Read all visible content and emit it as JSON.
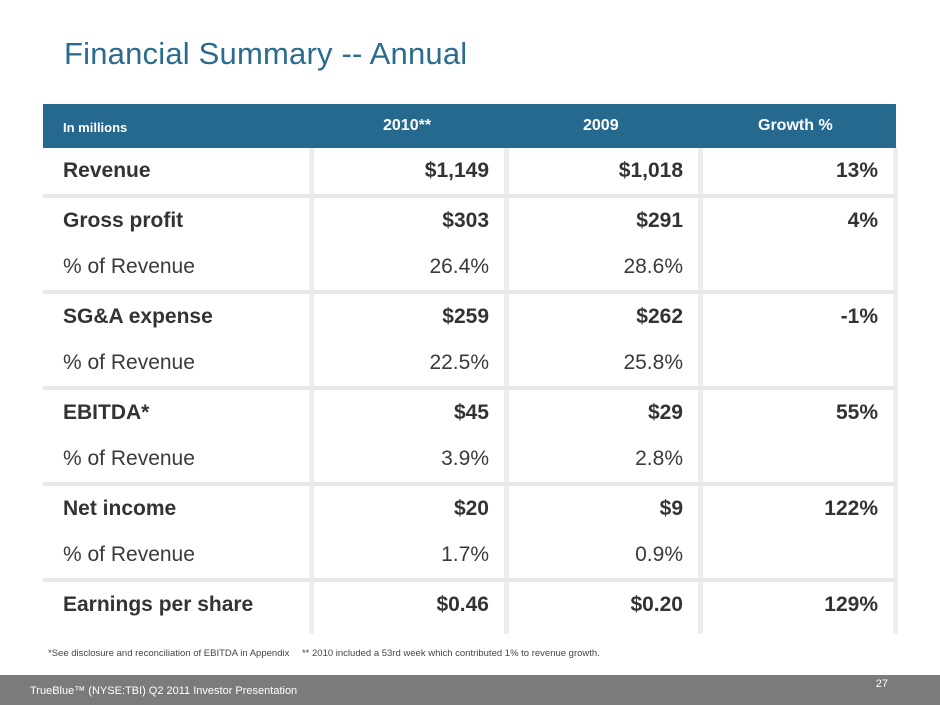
{
  "slide": {
    "title": "Financial Summary -- Annual",
    "page_number": "27",
    "footer": "TrueBlue™ (NYSE:TBI) Q2 2011 Investor Presentation"
  },
  "table": {
    "header": {
      "label": "In millions",
      "col1": "2010**",
      "col2": "2009",
      "col3": "Growth %"
    },
    "groups": [
      {
        "rows": [
          {
            "label": "Revenue",
            "c1": "$1,149",
            "c2": "$1,018",
            "c3": "13%",
            "bold": true
          }
        ]
      },
      {
        "rows": [
          {
            "label": "Gross profit",
            "c1": "$303",
            "c2": "$291",
            "c3": "4%",
            "bold": true
          },
          {
            "label": "% of Revenue",
            "c1": "26.4%",
            "c2": "28.6%",
            "c3": "",
            "bold": false
          }
        ]
      },
      {
        "rows": [
          {
            "label": "SG&A expense",
            "c1": "$259",
            "c2": "$262",
            "c3": "-1%",
            "bold": true
          },
          {
            "label": "% of Revenue",
            "c1": "22.5%",
            "c2": "25.8%",
            "c3": "",
            "bold": false
          }
        ]
      },
      {
        "rows": [
          {
            "label": "EBITDA*",
            "c1": "$45",
            "c2": "$29",
            "c3": "55%",
            "bold": true
          },
          {
            "label": "% of Revenue",
            "c1": "3.9%",
            "c2": "2.8%",
            "c3": "",
            "bold": false
          }
        ]
      },
      {
        "rows": [
          {
            "label": "Net income",
            "c1": "$20",
            "c2": "$9",
            "c3": "122%",
            "bold": true
          },
          {
            "label": "% of Revenue",
            "c1": "1.7%",
            "c2": "0.9%",
            "c3": "",
            "bold": false
          }
        ]
      },
      {
        "rows": [
          {
            "label": "Earnings per share",
            "c1": "$0.46",
            "c2": "$0.20",
            "c3": "129%",
            "bold": true
          }
        ]
      }
    ]
  },
  "footnotes": {
    "ebitda": "*See disclosure and reconciliation of EBITDA in Appendix",
    "week53": "** 2010 included a 53rd week which contributed 1% to revenue growth."
  },
  "colors": {
    "title": "#2a6b8e",
    "header_bg": "#25698f",
    "footer_bg": "#7b7b7b"
  }
}
